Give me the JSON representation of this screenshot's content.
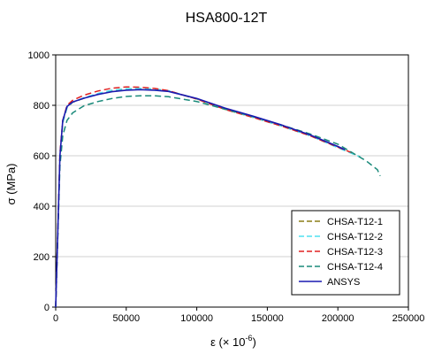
{
  "chart_data": {
    "type": "line",
    "title": "HSA800-12T",
    "ylabel": "σ  (MPa)",
    "xlabel_main": "ε  (× 10",
    "xlabel_sup": "-6",
    "xlabel_close": ")",
    "xlim": [
      0,
      250000
    ],
    "ylim": [
      0,
      1000
    ],
    "x_ticks": [
      0,
      50000,
      100000,
      150000,
      200000,
      250000
    ],
    "y_ticks": [
      0,
      200,
      400,
      600,
      800,
      1000
    ],
    "legend_position": "bottom-right",
    "series": [
      {
        "name": "CHSA-T12-1",
        "color": "#8B7D16",
        "dash": "dashed",
        "x": [
          0,
          1500,
          3000,
          5000,
          8000,
          12000,
          20000,
          30000,
          40000,
          50000,
          60000,
          70000,
          80000,
          100000,
          120000,
          140000,
          160000,
          180000,
          200000,
          215000
        ],
        "y": [
          0,
          300,
          600,
          730,
          790,
          812,
          828,
          845,
          858,
          865,
          866,
          864,
          857,
          825,
          784,
          752,
          718,
          680,
          634,
          598
        ]
      },
      {
        "name": "CHSA-T12-2",
        "color": "#4FE0F0",
        "dash": "dashed",
        "x": [
          0,
          1500,
          3000,
          5000,
          8000,
          12000,
          20000,
          30000,
          40000,
          50000,
          60000,
          70000,
          80000,
          100000,
          120000,
          140000,
          160000,
          180000,
          200000,
          216000
        ],
        "y": [
          0,
          300,
          600,
          730,
          790,
          813,
          830,
          847,
          860,
          866,
          867,
          865,
          858,
          826,
          785,
          752,
          718,
          680,
          632,
          595
        ]
      },
      {
        "name": "CHSA-T12-3",
        "color": "#E02020",
        "dash": "dashed",
        "x": [
          0,
          1500,
          3000,
          5000,
          8000,
          12000,
          20000,
          30000,
          40000,
          50000,
          60000,
          70000,
          80000,
          100000,
          120000,
          140000,
          160000,
          180000,
          200000,
          210000
        ],
        "y": [
          0,
          300,
          610,
          740,
          800,
          820,
          840,
          857,
          868,
          873,
          872,
          867,
          858,
          825,
          784,
          752,
          718,
          680,
          634,
          612
        ]
      },
      {
        "name": "CHSA-T12-4",
        "color": "#1A8A7A",
        "dash": "dashed",
        "x": [
          0,
          1500,
          3000,
          5000,
          8000,
          12000,
          20000,
          30000,
          40000,
          50000,
          60000,
          70000,
          80000,
          100000,
          120000,
          140000,
          160000,
          180000,
          200000,
          220000,
          228000,
          230000
        ],
        "y": [
          0,
          280,
          560,
          680,
          740,
          770,
          798,
          815,
          827,
          835,
          838,
          838,
          834,
          815,
          785,
          755,
          722,
          687,
          646,
          580,
          545,
          520
        ]
      },
      {
        "name": "ANSYS",
        "color": "#1A1AB0",
        "dash": "solid",
        "x": [
          0,
          1500,
          3000,
          5000,
          8000,
          12000,
          20000,
          30000,
          40000,
          50000,
          60000,
          70000,
          80000,
          100000,
          120000,
          140000,
          160000,
          180000,
          200000,
          205000
        ],
        "y": [
          0,
          300,
          600,
          740,
          795,
          813,
          828,
          843,
          854,
          860,
          862,
          860,
          855,
          827,
          789,
          757,
          722,
          683,
          637,
          624
        ]
      }
    ]
  }
}
